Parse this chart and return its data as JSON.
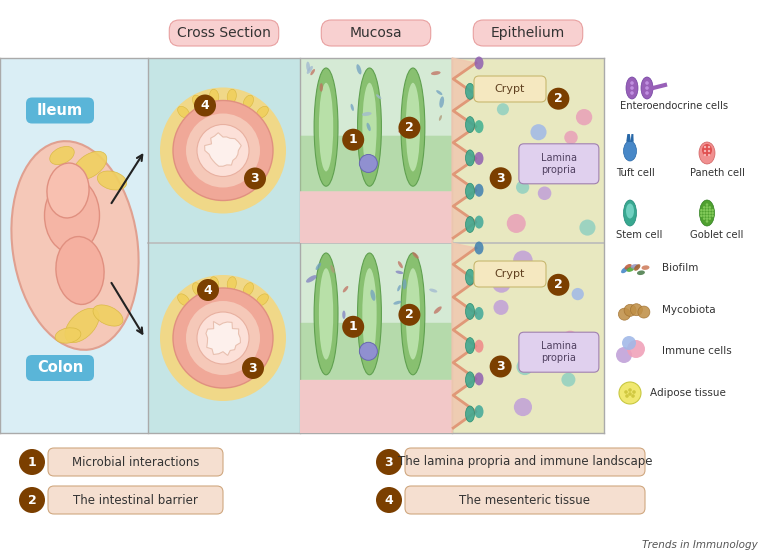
{
  "bg_color": "#ffffff",
  "panel_left_bg": "#daeef5",
  "panel_cross_bg": "#c5e5e5",
  "panel_mucosa_bg": "#d5ead5",
  "panel_epi_bg": "#e8e8c0",
  "header_bg": "#f8d0d0",
  "header_edge": "#e8a0a0",
  "section_headers": [
    "Cross Section",
    "Mucosa",
    "Epithelium"
  ],
  "ileum_label": "Ileum",
  "colon_label": "Colon",
  "label_box_color": "#5ab5d8",
  "num_circle_color": "#7B3F00",
  "crypt_box_bg": "#f5e8c0",
  "crypt_box_edge": "#c8b870",
  "lamina_box_bg": "#e0d0ee",
  "lamina_box_edge": "#a080b0",
  "bottom_box_bg": "#f5dfd0",
  "bottom_box_edge": "#d0a880",
  "journal_text": "Trends in Immunology",
  "bottom_legends": [
    [
      "1",
      "Microbial interactions",
      "left",
      0
    ],
    [
      "2",
      "The intestinal barrier",
      "left",
      1
    ],
    [
      "3",
      "The lamina propria and immune landscape",
      "right",
      0
    ],
    [
      "4",
      "The mesenteric tissue",
      "right",
      1
    ]
  ]
}
